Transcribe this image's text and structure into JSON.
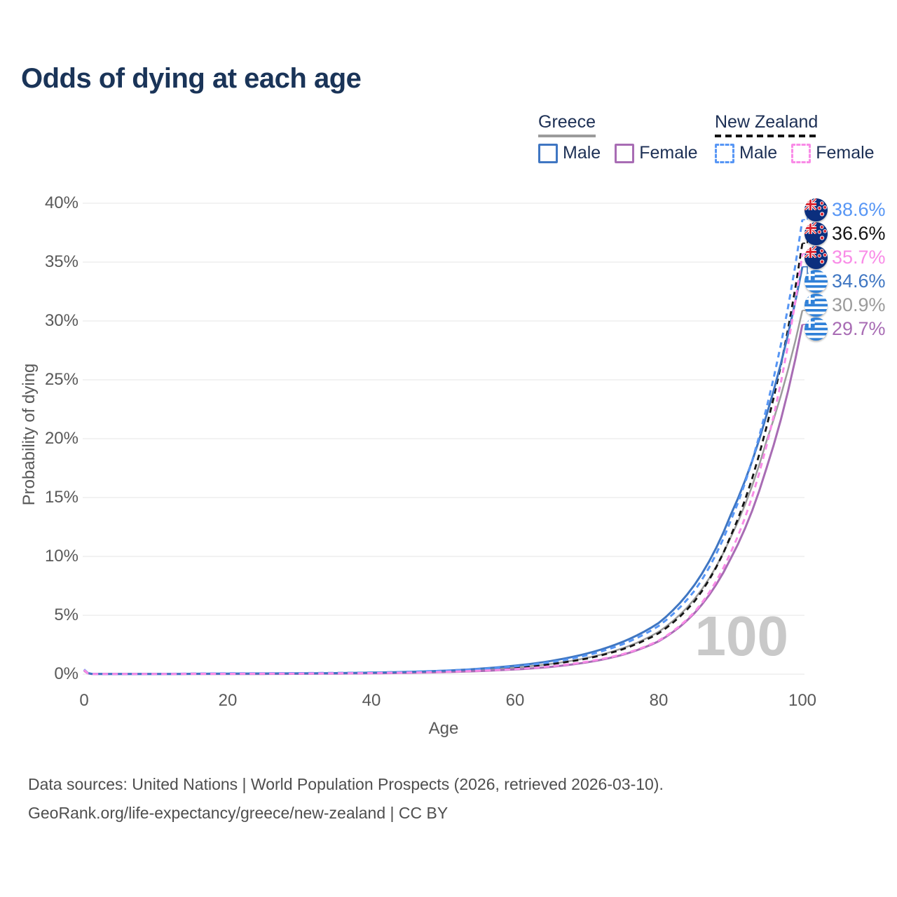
{
  "title": "Odds of dying at each age",
  "legend": {
    "groups": [
      {
        "label": "Greece",
        "line_style": "solid",
        "underline_color": "#9b9b9b",
        "items": [
          {
            "label": "Male",
            "color": "#3f76c2",
            "dashed": false
          },
          {
            "label": "Female",
            "color": "#a86cb4",
            "dashed": false
          }
        ]
      },
      {
        "label": "New Zealand",
        "line_style": "dashed",
        "underline_color": "#141414",
        "items": [
          {
            "label": "Male",
            "color": "#5796f5",
            "dashed": true
          },
          {
            "label": "Female",
            "color": "#f98be7",
            "dashed": true
          }
        ]
      }
    ]
  },
  "chart_data": {
    "type": "line",
    "title": "Odds of dying at each age",
    "xlabel": "Age",
    "ylabel": "Probability of dying",
    "xlim": [
      0,
      100
    ],
    "ylim": [
      0,
      40
    ],
    "xticks": [
      0,
      20,
      40,
      60,
      80,
      100
    ],
    "yticks": [
      "0%",
      "5%",
      "10%",
      "15%",
      "20%",
      "25%",
      "30%",
      "35%",
      "40%"
    ],
    "grid": "horizontal",
    "legend_position": "top-right",
    "watermark": "100",
    "x": [
      0,
      1,
      5,
      10,
      15,
      20,
      25,
      30,
      35,
      40,
      45,
      50,
      55,
      60,
      65,
      70,
      75,
      80,
      85,
      90,
      95,
      100
    ],
    "series": [
      {
        "key": "greece_all",
        "name": "Greece (both sexes)",
        "country": "Greece",
        "sex": "all",
        "color": "#9b9b9b",
        "dashed": false,
        "flag": "greece",
        "end_label": "30.9%",
        "values": [
          0.33,
          0.03,
          0.01,
          0.01,
          0.02,
          0.04,
          0.04,
          0.05,
          0.07,
          0.1,
          0.15,
          0.23,
          0.36,
          0.56,
          0.87,
          1.38,
          2.2,
          3.6,
          6.4,
          11.6,
          19.8,
          30.9
        ]
      },
      {
        "key": "nz_all",
        "name": "New Zealand (both sexes)",
        "country": "New Zealand",
        "sex": "all",
        "color": "#141414",
        "dashed": true,
        "flag": "nz",
        "end_label": "36.6%",
        "values": [
          0.38,
          0.03,
          0.01,
          0.02,
          0.04,
          0.05,
          0.06,
          0.07,
          0.09,
          0.12,
          0.17,
          0.24,
          0.36,
          0.55,
          0.85,
          1.33,
          2.12,
          3.48,
          6.2,
          11.7,
          21.0,
          36.6
        ]
      },
      {
        "key": "greece_female",
        "name": "Greece Female",
        "country": "Greece",
        "sex": "female",
        "color": "#a86cb4",
        "dashed": false,
        "flag": "greece",
        "end_label": "29.7%",
        "values": [
          0.3,
          0.02,
          0.01,
          0.01,
          0.02,
          0.02,
          0.02,
          0.03,
          0.05,
          0.07,
          0.11,
          0.17,
          0.26,
          0.4,
          0.62,
          1.0,
          1.65,
          2.8,
          5.2,
          9.8,
          17.5,
          29.7
        ]
      },
      {
        "key": "greece_male",
        "name": "Greece Male",
        "country": "Greece",
        "sex": "male",
        "color": "#3f76c2",
        "dashed": false,
        "flag": "greece",
        "end_label": "34.6%",
        "values": [
          0.35,
          0.03,
          0.01,
          0.01,
          0.03,
          0.05,
          0.06,
          0.07,
          0.09,
          0.13,
          0.19,
          0.29,
          0.46,
          0.72,
          1.12,
          1.75,
          2.75,
          4.35,
          7.6,
          13.5,
          22.0,
          34.6
        ]
      },
      {
        "key": "nz_male",
        "name": "New Zealand Male",
        "country": "New Zealand",
        "sex": "male",
        "color": "#5796f5",
        "dashed": true,
        "flag": "nz",
        "end_label": "38.6%",
        "values": [
          0.4,
          0.03,
          0.01,
          0.02,
          0.05,
          0.07,
          0.08,
          0.09,
          0.11,
          0.14,
          0.2,
          0.29,
          0.43,
          0.66,
          1.02,
          1.6,
          2.55,
          4.1,
          7.1,
          13.0,
          22.6,
          38.6
        ]
      },
      {
        "key": "nz_female",
        "name": "New Zealand Female",
        "country": "New Zealand",
        "sex": "female",
        "color": "#f98be7",
        "dashed": true,
        "flag": "nz",
        "end_label": "35.7%",
        "values": [
          0.35,
          0.02,
          0.01,
          0.01,
          0.03,
          0.03,
          0.04,
          0.05,
          0.07,
          0.09,
          0.13,
          0.19,
          0.29,
          0.43,
          0.67,
          1.06,
          1.7,
          2.85,
          5.3,
          10.3,
          19.4,
          35.7
        ]
      }
    ]
  },
  "footer": {
    "line1": "Data sources: United Nations | World Population Prospects (2026, retrieved 2026-03-10).",
    "line2": "GeoRank.org/life-expectancy/greece/new-zealand | CC BY"
  }
}
